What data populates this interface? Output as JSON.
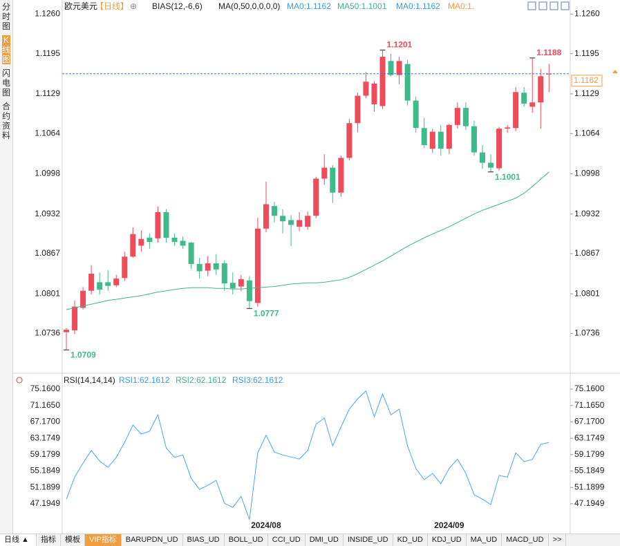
{
  "sidebar": [
    "分时图",
    "K线图",
    "闪电图",
    "合约资料"
  ],
  "chart_data": [
    {
      "type": "candlestick",
      "title": "欧元美元",
      "period": "【日线】",
      "indicators": [
        "BIAS(12,-6,6)",
        "MA(0,50,0,0,0,0)"
      ],
      "legend": [
        {
          "text": "MA0:1.1162",
          "color": "#3b9ae1"
        },
        {
          "text": "MA50:1.1001",
          "color": "#3fb489"
        },
        {
          "text": "MA0:1.1162",
          "color": "#3b9ae1"
        },
        {
          "text": "MA0:1.",
          "color": "#f39c3b"
        }
      ],
      "open": [
        1.0738,
        1.0741,
        1.0778,
        1.0806,
        1.082,
        1.082,
        1.0815,
        1.0827,
        1.0862,
        1.088,
        1.0893,
        1.0892,
        1.0935,
        1.0893,
        1.0888,
        1.0885,
        1.085,
        1.0839,
        1.0851,
        1.0851,
        1.0819,
        1.0813,
        1.0823,
        1.0786,
        1.0908,
        1.0945,
        1.0929,
        1.0922,
        1.0911,
        1.0911,
        1.0929,
        1.099,
        1.1008,
        1.0967,
        1.1024,
        1.1081,
        1.1126,
        1.1112,
        1.1109,
        1.1183,
        1.116,
        1.1178,
        1.1118,
        1.1073,
        1.1039,
        1.1067,
        1.1039,
        1.1078,
        1.1106,
        1.1076,
        1.1033,
        1.1016,
        1.1007,
        1.1072,
        1.1073,
        1.1131,
        1.1108,
        1.1115,
        1.1161
      ],
      "high": [
        1.0745,
        1.079,
        1.0812,
        1.0848,
        1.0836,
        1.084,
        1.0832,
        1.087,
        1.091,
        1.0905,
        1.09,
        1.0944,
        1.094,
        1.09,
        1.0895,
        1.0886,
        1.086,
        1.0863,
        1.0866,
        1.0856,
        1.0836,
        1.0832,
        1.083,
        1.0926,
        1.0985,
        1.0952,
        1.094,
        1.093,
        1.0935,
        1.0936,
        1.0993,
        1.103,
        1.1012,
        1.1028,
        1.1088,
        1.1131,
        1.1165,
        1.115,
        1.1201,
        1.1195,
        1.119,
        1.1185,
        1.1125,
        1.109,
        1.1072,
        1.1078,
        1.108,
        1.1115,
        1.1115,
        1.1085,
        1.1045,
        1.103,
        1.1075,
        1.1078,
        1.114,
        1.114,
        1.1188,
        1.117,
        1.1178
      ],
      "low": [
        1.0709,
        1.0735,
        1.0775,
        1.08,
        1.08,
        1.0806,
        1.0812,
        1.0822,
        1.086,
        1.087,
        1.0875,
        1.0885,
        1.0885,
        1.088,
        1.0875,
        1.0842,
        1.0826,
        1.083,
        1.0832,
        1.0806,
        1.08,
        1.0805,
        1.0777,
        1.078,
        1.0902,
        1.0918,
        1.09,
        1.0879,
        1.0904,
        1.0906,
        1.0925,
        1.098,
        1.095,
        1.096,
        1.102,
        1.1066,
        1.1122,
        1.11,
        1.1104,
        1.1158,
        1.1145,
        1.111,
        1.1065,
        1.104,
        1.1032,
        1.1028,
        1.103,
        1.1072,
        1.107,
        1.1028,
        1.1006,
        1.1001,
        1.1003,
        1.1065,
        1.1068,
        1.1108,
        1.1098,
        1.1072,
        1.1132
      ],
      "close": [
        1.0742,
        1.078,
        1.0806,
        1.0834,
        1.0808,
        1.0814,
        1.0826,
        1.0862,
        1.0899,
        1.0891,
        1.0886,
        1.0935,
        1.0893,
        1.0886,
        1.088,
        1.085,
        1.0838,
        1.0851,
        1.0841,
        1.0818,
        1.081,
        1.0825,
        1.0789,
        1.0908,
        1.0948,
        1.0929,
        1.092,
        1.0914,
        1.0922,
        1.0929,
        1.099,
        1.1008,
        1.0967,
        1.1024,
        1.1081,
        1.1126,
        1.1149,
        1.1146,
        1.119,
        1.116,
        1.1183,
        1.1118,
        1.1073,
        1.1045,
        1.1067,
        1.1039,
        1.1078,
        1.1106,
        1.1076,
        1.1033,
        1.1016,
        1.1008,
        1.1072,
        1.1074,
        1.1132,
        1.1113,
        1.1115,
        1.1158,
        1.1162
      ],
      "up_color": "#ee4b5b",
      "down_color": "#3fba8b",
      "series": [
        {
          "color": "#3fb489",
          "values": [
            1.0775,
            1.0778,
            1.0781,
            1.0784,
            1.0787,
            1.079,
            1.0792,
            1.0794,
            1.0796,
            1.0798,
            1.0801,
            1.0804,
            1.0806,
            1.0808,
            1.081,
            1.0811,
            1.0811,
            1.0811,
            1.081,
            1.081,
            1.0809,
            1.0809,
            1.081,
            1.0811,
            1.0812,
            1.0813,
            1.0815,
            1.0817,
            1.0818,
            1.0819,
            1.0819,
            1.082,
            1.0822,
            1.0824,
            1.0828,
            1.0834,
            1.0841,
            1.0848,
            1.0855,
            1.0863,
            1.0871,
            1.0879,
            1.0886,
            1.0893,
            1.0899,
            1.0905,
            1.0911,
            1.0918,
            1.0925,
            1.0932,
            1.0938,
            1.0943,
            1.0948,
            1.0953,
            1.0958,
            1.0966,
            1.0977,
            1.0989,
            1.1001
          ]
        }
      ],
      "annotations": [
        1.0709,
        1.0777,
        1.1201,
        1.1001,
        1.1188
      ],
      "last_price": 1.1162,
      "last_price_color": "#f39c3b",
      "ylim": [
        1.0673,
        1.1274
      ],
      "yticks": [
        {
          "value": 1.126,
          "label": "1.1260"
        },
        1.1195,
        1.1129,
        1.1064,
        1.0998,
        1.0932,
        1.0867,
        1.0801,
        1.0736
      ]
    },
    {
      "type": "line",
      "title": "RSI(14,14,14)",
      "legend": [
        {
          "text": "RSI1:62.1612",
          "color": "#3b9ae1"
        },
        {
          "text": "RSI2:62.1612",
          "color": "#3fb489"
        },
        {
          "text": "RSI3:62.1612",
          "color": "#3b9ae1"
        }
      ],
      "categories": [
        null,
        null,
        null,
        null,
        null,
        null,
        null,
        null,
        null,
        null,
        null,
        null,
        null,
        null,
        null,
        null,
        null,
        null,
        null,
        null,
        null,
        null,
        null,
        null,
        "2024/08",
        null,
        null,
        null,
        null,
        null,
        null,
        null,
        null,
        null,
        null,
        null,
        null,
        null,
        null,
        null,
        null,
        null,
        null,
        null,
        null,
        null,
        "2024/09",
        null,
        null,
        null,
        null,
        null,
        null,
        null,
        null,
        null,
        null,
        null,
        null
      ],
      "series": [
        {
          "color": "#4aa8e3",
          "values": [
            48.3,
            53.7,
            57.1,
            60.2,
            57.6,
            56.1,
            58.5,
            62.2,
            66.4,
            64.2,
            64.9,
            68.9,
            60.8,
            58.5,
            59.1,
            53.4,
            50.7,
            51.7,
            52.9,
            47.3,
            46.3,
            49.0,
            43.3,
            59.6,
            63.9,
            59.8,
            59.1,
            58.6,
            58.1,
            60.2,
            66.6,
            68.1,
            61.3,
            65.9,
            70.3,
            72.8,
            74.7,
            68.4,
            74.0,
            68.9,
            70.3,
            61.3,
            55.8,
            53.1,
            54.6,
            52.1,
            55.8,
            58.1,
            54.6,
            49.4,
            48.3,
            47.0,
            54.1,
            53.7,
            59.6,
            57.5,
            58.0,
            61.7,
            62.1612
          ]
        }
      ],
      "ylim": [
        40.6,
        78.2
      ],
      "yticks": [
        {
          "value": 75.16,
          "label": "75.1600"
        },
        {
          "value": 71.165,
          "label": "71.1650"
        },
        {
          "value": 67.17,
          "label": "67.1700"
        },
        63.1749,
        59.1799,
        55.1849,
        51.1899,
        47.1949
      ]
    }
  ],
  "toolbar": {
    "period": "日线 ▲",
    "tabs": [
      "指标",
      "模板",
      "VIP指标",
      "BARUPDN_UD",
      "BIAS_UD",
      "BOLL_UD",
      "CCI_UD",
      "DMI_UD",
      "INSIDE_UD",
      "KD_UD",
      "KDJ_UD",
      "MA_UD",
      "MACD_UD",
      ">>"
    ]
  }
}
